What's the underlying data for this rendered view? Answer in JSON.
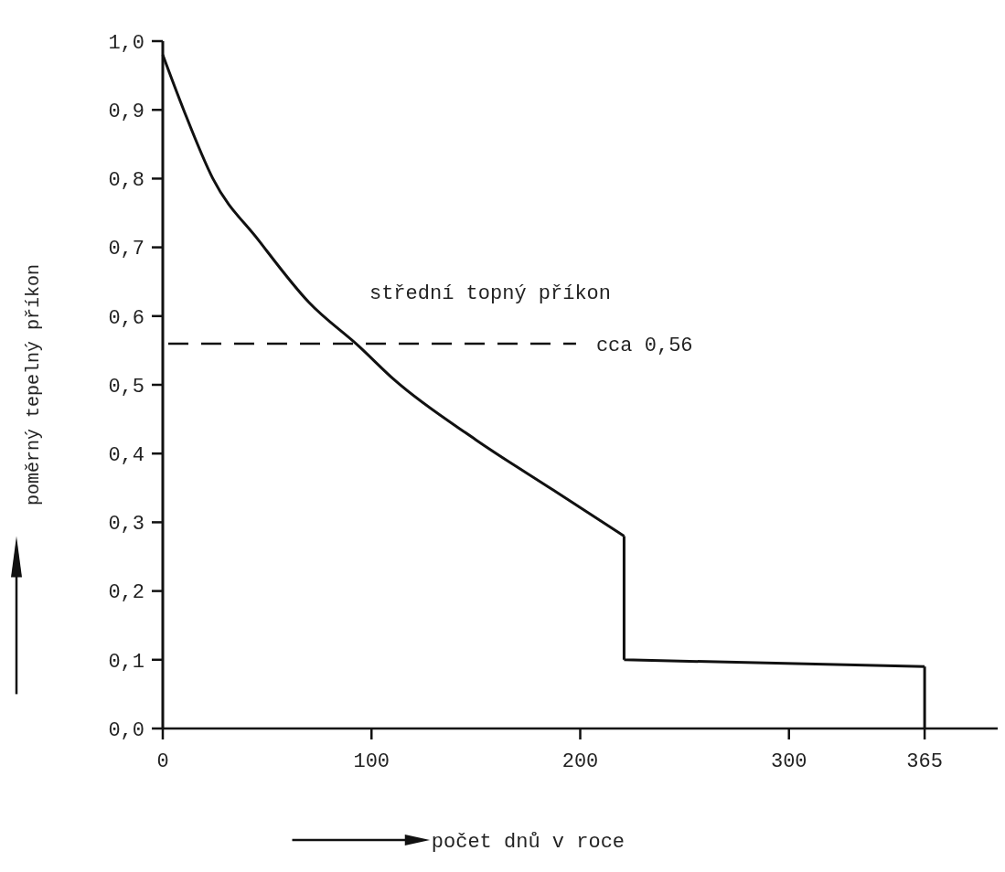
{
  "chart_data": {
    "type": "line",
    "xlabel": "počet dnů v roce",
    "ylabel": "poměrný tepelný příkon",
    "xlim": [
      0,
      400
    ],
    "xticks": [
      0,
      100,
      200,
      300,
      365
    ],
    "ylim": [
      0,
      1.0
    ],
    "yticks": [
      {
        "value": 0,
        "label": "0,0"
      },
      {
        "value": 0.1,
        "label": "0,1"
      },
      {
        "value": 0.2,
        "label": "0,2"
      },
      {
        "value": 0.3,
        "label": "0,3"
      },
      {
        "value": 0.4,
        "label": "0,4"
      },
      {
        "value": 0.5,
        "label": "0,5"
      },
      {
        "value": 0.6,
        "label": "0,6"
      },
      {
        "value": 0.7,
        "label": "0,7"
      },
      {
        "value": 0.8,
        "label": "0,8"
      },
      {
        "value": 0.9,
        "label": "0,9"
      },
      {
        "value": 1.0,
        "label": "1,0"
      }
    ],
    "grid": false,
    "marker": "none",
    "line_style": "solid",
    "series": [
      {
        "color": "#111111",
        "x": [
          0,
          10,
          24,
          46,
          70,
          94,
          111,
          150,
          187,
          221,
          221,
          365,
          365
        ],
        "values": [
          0.98,
          0.9,
          0.8,
          0.71,
          0.62,
          0.556,
          0.507,
          0.42,
          0.347,
          0.28,
          0.1,
          0.09,
          0
        ]
      }
    ],
    "ref_lines": [
      {
        "axis": "y",
        "value": 0.56,
        "label": "cca 0,56",
        "line_style": "dashed",
        "color": "#111111"
      }
    ],
    "annotations": [
      "střední topný příkon"
    ]
  }
}
